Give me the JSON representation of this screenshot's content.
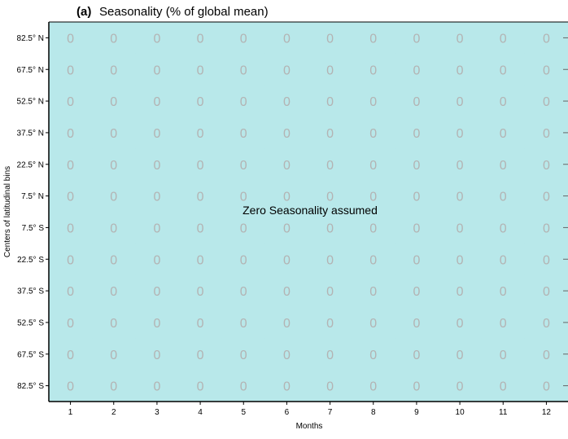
{
  "chart_data": {
    "type": "heatmap",
    "panel_label": "(a)",
    "title": "Seasonality (% of global mean)",
    "xlabel": "Months",
    "ylabel": "Centers of latitudinal bins",
    "annotation": "Zero Seasonality assumed",
    "categories": [
      "1",
      "2",
      "3",
      "4",
      "5",
      "6",
      "7",
      "8",
      "9",
      "10",
      "11",
      "12"
    ],
    "y_categories": [
      "82.5° N",
      "67.5° N",
      "52.5° N",
      "37.5° N",
      "22.5° N",
      "7.5° N",
      "7.5° S",
      "22.5° S",
      "37.5° S",
      "52.5° S",
      "67.5° S",
      "82.5° S"
    ],
    "values": [
      [
        0,
        0,
        0,
        0,
        0,
        0,
        0,
        0,
        0,
        0,
        0,
        0
      ],
      [
        0,
        0,
        0,
        0,
        0,
        0,
        0,
        0,
        0,
        0,
        0,
        0
      ],
      [
        0,
        0,
        0,
        0,
        0,
        0,
        0,
        0,
        0,
        0,
        0,
        0
      ],
      [
        0,
        0,
        0,
        0,
        0,
        0,
        0,
        0,
        0,
        0,
        0,
        0
      ],
      [
        0,
        0,
        0,
        0,
        0,
        0,
        0,
        0,
        0,
        0,
        0,
        0
      ],
      [
        0,
        0,
        0,
        0,
        0,
        0,
        0,
        0,
        0,
        0,
        0,
        0
      ],
      [
        0,
        0,
        0,
        0,
        0,
        0,
        0,
        0,
        0,
        0,
        0,
        0
      ],
      [
        0,
        0,
        0,
        0,
        0,
        0,
        0,
        0,
        0,
        0,
        0,
        0
      ],
      [
        0,
        0,
        0,
        0,
        0,
        0,
        0,
        0,
        0,
        0,
        0,
        0
      ],
      [
        0,
        0,
        0,
        0,
        0,
        0,
        0,
        0,
        0,
        0,
        0,
        0
      ],
      [
        0,
        0,
        0,
        0,
        0,
        0,
        0,
        0,
        0,
        0,
        0,
        0
      ],
      [
        0,
        0,
        0,
        0,
        0,
        0,
        0,
        0,
        0,
        0,
        0,
        0
      ]
    ],
    "grid": false,
    "colors": {
      "cell_fill": "#b8e8ea",
      "value_text": "#b3b3b3",
      "axis": "#000000"
    }
  }
}
